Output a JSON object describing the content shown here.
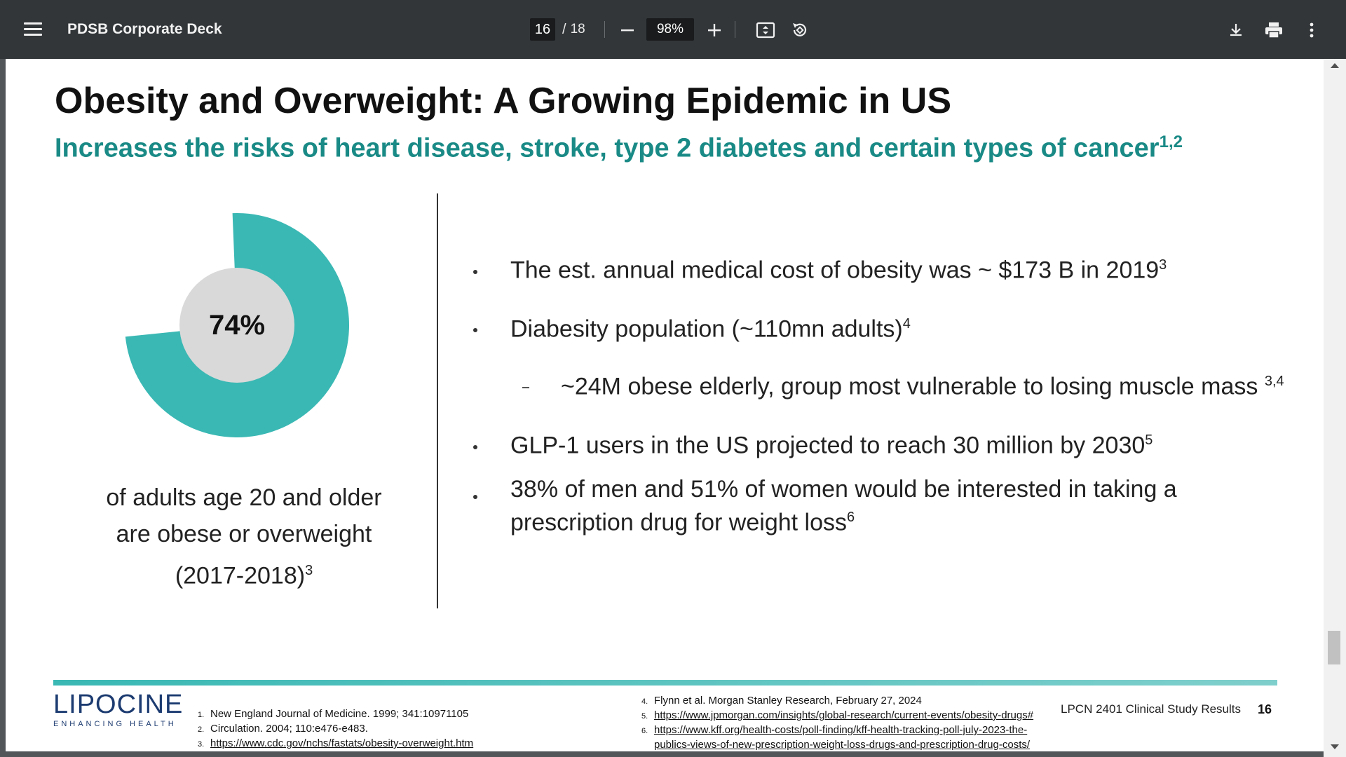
{
  "toolbar": {
    "title": "PDSB Corporate Deck",
    "page_current": "16",
    "page_separator": "/",
    "page_total": "18",
    "zoom": "98%",
    "icons": [
      "menu-icon",
      "minus-icon",
      "plus-icon",
      "fit-page-icon",
      "rotate-icon",
      "download-icon",
      "print-icon",
      "more-vert-icon"
    ]
  },
  "slide": {
    "title": "Obesity and Overweight: A Growing Epidemic in US",
    "subtitle": "Increases the risks of heart disease, stroke, type 2 diabetes and certain types of cancer",
    "subtitle_sup": "1,2",
    "donut": {
      "value_label": "74%",
      "fraction": 0.74,
      "color": "#3ab8b4",
      "center_color": "#d9d9d9"
    },
    "caption_line1": "of adults age 20 and older",
    "caption_line2": "are obese or overweight",
    "caption_line3": "(2017-2018)",
    "caption_sup": "3",
    "bullets": [
      {
        "text": "The est. annual medical cost of obesity was ~ $173 B in 2019",
        "sup": "3"
      },
      {
        "text": "Diabesity population (~110mn adults)",
        "sup": "4"
      },
      {
        "text": "~24M obese elderly, group most vulnerable to losing muscle mass ",
        "sup": "3,4"
      },
      {
        "text": "GLP-1 users in the US projected to reach 30 million by 2030",
        "sup": "5"
      },
      {
        "text": "38% of men and 51% of women would be interested in taking a",
        "text2": "prescription drug for weight loss",
        "sup": "6"
      }
    ],
    "logo_text": "LIPOCINE",
    "logo_tagline": "ENHANCING HEALTH",
    "refs_left": [
      {
        "num": "1.",
        "text": "New England Journal of Medicine. 1999; 341:10971105"
      },
      {
        "num": "2.",
        "text": "Circulation. 2004; 110:e476-e483."
      },
      {
        "num": "3.",
        "text": "https://www.cdc.gov/nchs/fastats/obesity-overweight.htm"
      }
    ],
    "refs_right": [
      {
        "num": "4.",
        "text": "Flynn et al. Morgan Stanley Research, February 27, 2024"
      },
      {
        "num": "5.",
        "text": "https://www.jpmorgan.com/insights/global-research/current-events/obesity-drugs#"
      },
      {
        "num": "6.",
        "text": "https://www.kff.org/health-costs/poll-finding/kff-health-tracking-poll-july-2023-the-",
        "text2": "publics-views-of-new-prescription-weight-loss-drugs-and-prescription-drug-costs/"
      }
    ],
    "study_label": "LPCN 2401 Clinical Study Results",
    "page_number": "16"
  }
}
